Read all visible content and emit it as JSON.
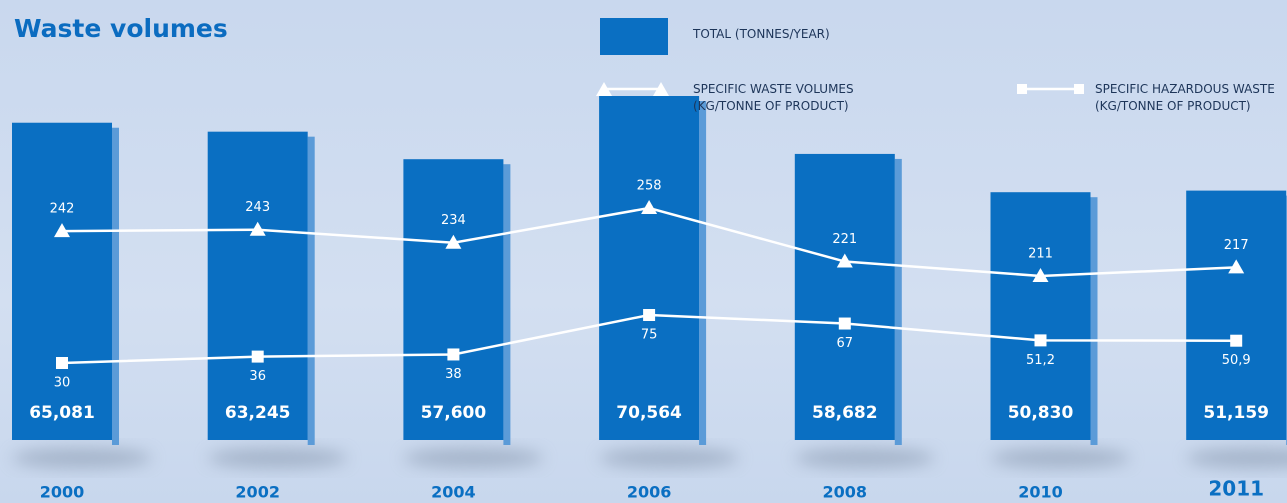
{
  "chart_data": {
    "type": "bar",
    "title": "Waste volumes",
    "categories": [
      "2000",
      "2002",
      "2004",
      "2006",
      "2008",
      "2010",
      "2011"
    ],
    "series": [
      {
        "name": "TOTAL (TONNES/YEAR)",
        "type": "bar",
        "color": "#0a6fc2",
        "values": [
          65081,
          63245,
          57600,
          70564,
          58682,
          50830,
          51159
        ],
        "value_labels": [
          "65,081",
          "63,245",
          "57,600",
          "70,564",
          "58,682",
          "50,830",
          "51,159"
        ]
      },
      {
        "name": "SPECIFIC WASTE VOLUMES (KG/TONNE OF PRODUCT)",
        "type": "line",
        "marker": "triangle",
        "color": "#ffffff",
        "values": [
          242,
          243,
          234,
          258,
          221,
          211,
          217
        ]
      },
      {
        "name": "SPECIFIC HAZARDOUS WASTE (KG/TONNE OF PRODUCT)",
        "type": "line",
        "marker": "square",
        "color": "#ffffff",
        "values": [
          30,
          36,
          38,
          75,
          67,
          51.2,
          50.9
        ],
        "value_labels": [
          "30",
          "36",
          "38",
          "75",
          "67",
          "51,2",
          "50,9"
        ]
      }
    ]
  }
}
